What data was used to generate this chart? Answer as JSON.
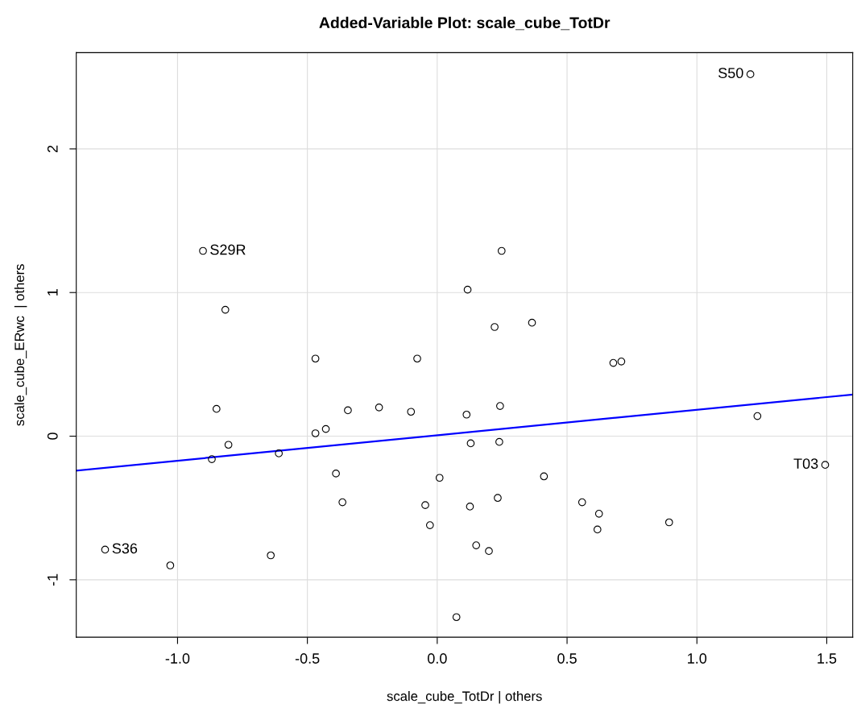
{
  "chart_data": {
    "type": "scatter",
    "title": "Added-Variable Plot: scale_cube_TotDr",
    "xlabel": "scale_cube_TotDr | others",
    "ylabel": "scale_cube_ERwc  | others",
    "series": [
      {
        "color": "#000000",
        "marker": "circle",
        "x": [
          1.206,
          -0.902,
          -1.279,
          1.494,
          0.248,
          -0.816,
          0.117,
          0.221,
          0.365,
          0.678,
          0.709,
          -0.469,
          -0.077,
          -0.85,
          -0.224,
          -0.344,
          -0.101,
          0.113,
          0.242,
          1.233,
          -0.469,
          -0.429,
          -0.804,
          -0.868,
          -0.61,
          0.129,
          0.239,
          0.009,
          -0.39,
          0.411,
          -0.365,
          -0.046,
          0.126,
          0.233,
          0.558,
          0.623,
          0.617,
          0.893,
          -0.028,
          0.15,
          0.199,
          -0.641,
          -1.028,
          0.074
        ],
        "values": [
          2.52,
          1.29,
          -0.79,
          -0.2,
          1.29,
          0.88,
          1.02,
          0.76,
          0.79,
          0.51,
          0.52,
          0.54,
          0.54,
          0.19,
          0.2,
          0.18,
          0.17,
          0.15,
          0.21,
          0.14,
          0.02,
          0.05,
          -0.06,
          -0.16,
          -0.12,
          -0.05,
          -0.04,
          -0.29,
          -0.26,
          -0.28,
          -0.46,
          -0.48,
          -0.49,
          -0.43,
          -0.46,
          -0.54,
          -0.65,
          -0.6,
          -0.62,
          -0.76,
          -0.8,
          -0.83,
          -0.9,
          -1.26
        ]
      },
      {
        "type": "line",
        "color": "#0000ff",
        "x": [
          -1.39,
          1.6
        ],
        "values": [
          -0.24,
          0.29
        ]
      }
    ],
    "annotations": [
      {
        "text": "S50",
        "x": 1.206,
        "y": 2.52
      },
      {
        "text": "S29R",
        "x": -0.902,
        "y": 1.29
      },
      {
        "text": "S36",
        "x": -1.279,
        "y": -0.79
      },
      {
        "text": "T03",
        "x": 1.494,
        "y": -0.2
      }
    ],
    "xlim": [
      -1.39,
      1.6
    ],
    "ylim": [
      -1.4,
      2.67
    ],
    "xticks": [
      {
        "value": -1,
        "label": "-1.0"
      },
      {
        "value": -0.5,
        "label": "-0.5"
      },
      {
        "value": 0,
        "label": "0.0"
      },
      {
        "value": 0.5,
        "label": "0.5"
      },
      {
        "value": 1,
        "label": "1.0"
      },
      {
        "value": 1.5,
        "label": "1.5"
      }
    ],
    "yticks": [
      -1,
      0,
      1,
      2
    ],
    "grid": true
  }
}
